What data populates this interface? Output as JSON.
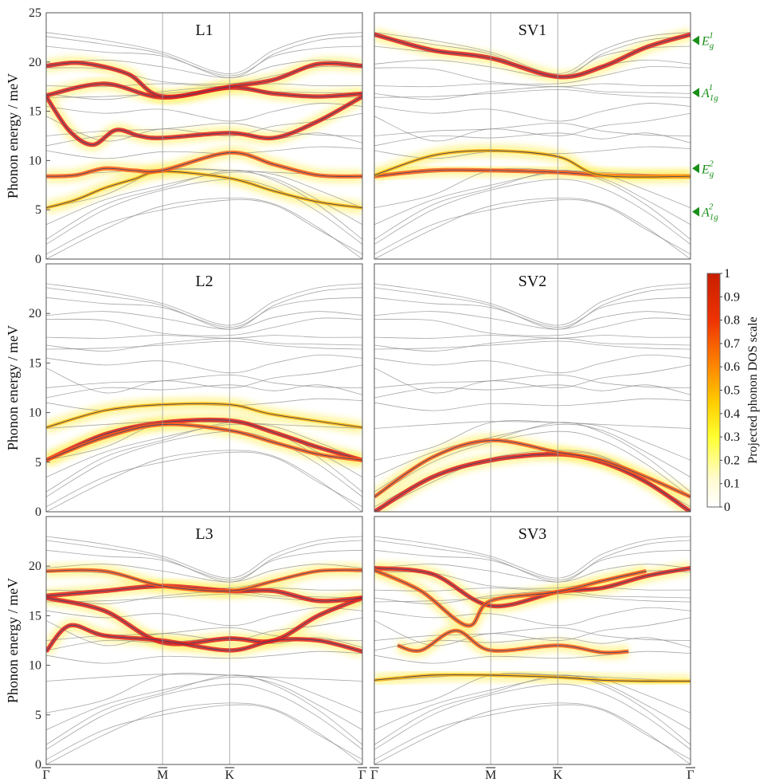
{
  "chart_data": [
    {
      "type": "line",
      "title": "L1",
      "ylabel": "Phonon energy / meV",
      "ylim": [
        0,
        25
      ],
      "yticks": [
        "0",
        "5",
        "10",
        "15",
        "20",
        "25"
      ],
      "xticks": [
        "Γ",
        "M",
        "K",
        "Γ"
      ],
      "highlighted_bands": [
        {
          "x": [
            0,
            0.25,
            0.5,
            0.75,
            1,
            1.5,
            2.0,
            2.5,
            3.0
          ],
          "y": [
            5.2,
            6.0,
            7.2,
            8.1,
            8.9,
            8.2,
            6.9,
            5.8,
            5.2
          ],
          "weight": 0.3
        },
        {
          "x": [
            0,
            0.25,
            0.5,
            0.75,
            1,
            1.5,
            2.0,
            2.5,
            3.0
          ],
          "y": [
            8.4,
            8.5,
            9.2,
            9.0,
            9.0,
            10.8,
            9.6,
            8.5,
            8.4
          ],
          "weight": 0.7
        },
        {
          "x": [
            0,
            0.2,
            0.4,
            0.6,
            0.8,
            1,
            1.5,
            2.0,
            2.5,
            3.0
          ],
          "y": [
            16.5,
            13.0,
            11.6,
            13.1,
            12.5,
            12.3,
            12.8,
            12.3,
            14.0,
            16.5
          ],
          "weight": 0.8
        },
        {
          "x": [
            0,
            0.5,
            1,
            1.5,
            2.0,
            2.5,
            3.0
          ],
          "y": [
            16.6,
            17.8,
            16.4,
            17.4,
            16.8,
            16.5,
            16.8
          ],
          "weight": 0.8
        },
        {
          "x": [
            0,
            0.3,
            0.7,
            1,
            1.5,
            2.0,
            2.5,
            3.0
          ],
          "y": [
            19.6,
            19.9,
            18.8,
            16.5,
            17.5,
            18.2,
            19.8,
            19.6
          ],
          "weight": 0.8
        }
      ]
    },
    {
      "type": "line",
      "title": "SV1",
      "ylabel": "",
      "ylim": [
        0,
        25
      ],
      "yticks": [],
      "xticks": [
        "Γ",
        "M",
        "K",
        "Γ"
      ],
      "mode_labels": [
        "E",
        "A",
        "E",
        "A"
      ],
      "mode_label_values": [
        22.2,
        16.9,
        9.2,
        4.8
      ],
      "highlighted_bands": [
        {
          "x": [
            0,
            0.5,
            1,
            1.5,
            2.0,
            2.5,
            3.0
          ],
          "y": [
            22.8,
            21.2,
            20.4,
            18.5,
            19.5,
            21.5,
            22.8
          ],
          "weight": 0.9
        },
        {
          "x": [
            0,
            0.5,
            1,
            1.5,
            2.0,
            2.5,
            3.0
          ],
          "y": [
            8.4,
            9.0,
            9.0,
            8.8,
            8.5,
            8.4,
            8.4
          ],
          "weight": 0.7
        },
        {
          "x": [
            0,
            0.5,
            1,
            1.5,
            2.0,
            3.0
          ],
          "y": [
            8.5,
            10.5,
            11.0,
            10.4,
            8.5,
            8.4
          ],
          "weight": 0.3
        }
      ]
    },
    {
      "type": "line",
      "title": "L2",
      "ylabel": "Phonon energy / meV",
      "ylim": [
        0,
        25
      ],
      "yticks": [
        "0",
        "5",
        "10",
        "15",
        "20"
      ],
      "xticks": [
        "Γ",
        "M",
        "K",
        "Γ"
      ],
      "highlighted_bands": [
        {
          "x": [
            0,
            0.5,
            1,
            1.5,
            2.0,
            2.5,
            3.0
          ],
          "y": [
            5.2,
            7.8,
            9.0,
            9.2,
            8.0,
            6.5,
            5.2
          ],
          "weight": 0.8
        },
        {
          "x": [
            0,
            0.5,
            1,
            1.5,
            2.0,
            2.5,
            3.0
          ],
          "y": [
            5.2,
            7.5,
            8.8,
            8.2,
            7.0,
            5.8,
            5.2
          ],
          "weight": 0.6
        },
        {
          "x": [
            0,
            0.5,
            1,
            1.5,
            2.0,
            3.0
          ],
          "y": [
            8.5,
            10.2,
            10.8,
            10.8,
            9.8,
            8.5
          ],
          "weight": 0.3
        }
      ]
    },
    {
      "type": "line",
      "title": "SV2",
      "ylabel": "",
      "ylim": [
        0,
        25
      ],
      "yticks": [],
      "xticks": [
        "Γ",
        "M",
        "K",
        "Γ"
      ],
      "highlighted_bands": [
        {
          "x": [
            0,
            0.5,
            1,
            1.5,
            2.0,
            2.5,
            3.0
          ],
          "y": [
            0.0,
            3.5,
            5.2,
            5.8,
            5.0,
            3.0,
            0.0
          ],
          "weight": 0.9
        },
        {
          "x": [
            0,
            0.5,
            1,
            1.5,
            2.0,
            2.5,
            3.0
          ],
          "y": [
            1.5,
            5.5,
            7.2,
            6.0,
            5.2,
            3.5,
            1.5
          ],
          "weight": 0.6
        }
      ]
    },
    {
      "type": "line",
      "title": "L3",
      "ylabel": "Phonon energy / meV",
      "ylim": [
        0,
        25
      ],
      "yticks": [
        "0",
        "5",
        "10",
        "15",
        "20"
      ],
      "xticks": [
        "Γ",
        "M",
        "K",
        "Γ"
      ],
      "highlighted_bands": [
        {
          "x": [
            0,
            0.5,
            1,
            1.5,
            2.0,
            2.5,
            3.0
          ],
          "y": [
            16.8,
            15.5,
            12.3,
            12.7,
            12.5,
            15.0,
            16.8
          ],
          "weight": 0.9
        },
        {
          "x": [
            0,
            0.2,
            0.5,
            1,
            1.5,
            2.0,
            2.5,
            3.0
          ],
          "y": [
            11.4,
            14.0,
            13.0,
            12.5,
            11.5,
            12.5,
            12.5,
            11.4
          ],
          "weight": 0.8
        },
        {
          "x": [
            0,
            0.5,
            1,
            1.5,
            2.0,
            2.5,
            3.0
          ],
          "y": [
            17.0,
            17.5,
            18.0,
            17.5,
            17.5,
            16.5,
            16.8
          ],
          "weight": 0.9
        },
        {
          "x": [
            0,
            0.5,
            1,
            1.5,
            2.0,
            2.5,
            3.0
          ],
          "y": [
            19.5,
            19.5,
            18.0,
            17.5,
            18.5,
            19.5,
            19.6
          ],
          "weight": 0.5
        }
      ]
    },
    {
      "type": "line",
      "title": "SV3",
      "ylabel": "",
      "ylim": [
        0,
        25
      ],
      "yticks": [],
      "xticks": [
        "Γ",
        "M",
        "K",
        "Γ"
      ],
      "highlighted_bands": [
        {
          "x": [
            0,
            0.5,
            1,
            1.5,
            2.0,
            2.5,
            3.0
          ],
          "y": [
            19.8,
            19.2,
            16.0,
            17.4,
            17.8,
            19.0,
            19.8
          ],
          "weight": 0.8
        },
        {
          "x": [
            0,
            0.4,
            0.8,
            1.0,
            1.5,
            2.0,
            2.5
          ],
          "y": [
            19.6,
            17.5,
            14.0,
            16.5,
            17.4,
            18.5,
            19.5
          ],
          "weight": 0.7
        },
        {
          "x": [
            0.2,
            0.4,
            0.7,
            1.0,
            1.5,
            2.0,
            2.3
          ],
          "y": [
            12.0,
            11.5,
            13.5,
            11.5,
            12.0,
            11.3,
            11.4
          ],
          "weight": 0.6
        },
        {
          "x": [
            0,
            0.5,
            1,
            1.5,
            2.0,
            2.5,
            3.0
          ],
          "y": [
            8.5,
            9.0,
            9.0,
            8.8,
            8.5,
            8.4,
            8.4
          ],
          "weight": 0.3
        }
      ]
    }
  ],
  "colorbar": {
    "label": "Projected phonon DOS scale",
    "ticks": [
      "0",
      "0.1",
      "0.2",
      "0.3",
      "0.4",
      "0.5",
      "0.6",
      "0.7",
      "0.8",
      "0.9",
      "1"
    ],
    "colors": [
      "#ffffff",
      "#ffff33",
      "#ff9900",
      "#ff3300",
      "#d40000"
    ]
  },
  "colors": {
    "gray_band": "#8a8a8a",
    "mode_arrow": "#1a8f1a"
  },
  "mode_labels": {
    "eg1": {
      "base": "E",
      "sub": "g",
      "sup": "1"
    },
    "a1g1": {
      "base": "A",
      "sub": "1g",
      "sup": "1"
    },
    "eg2": {
      "base": "E",
      "sub": "g",
      "sup": "2"
    },
    "a1g2": {
      "base": "A",
      "sub": "1g",
      "sup": "2"
    }
  }
}
